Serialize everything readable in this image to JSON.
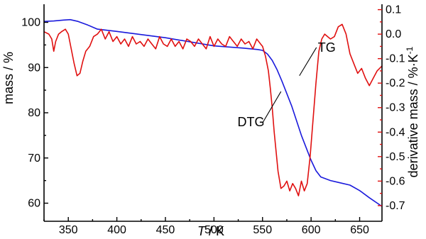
{
  "chart_data": {
    "type": "line",
    "xlabel": {
      "italic": "T",
      "rest": " / K"
    },
    "ylabel_left": "mass / %",
    "ylabel_right": {
      "base": "derivative mass / %·K",
      "sup": "-1"
    },
    "xlim": [
      325,
      673
    ],
    "ylim_left": [
      56,
      104
    ],
    "ylim_right": [
      -0.764,
      0.122
    ],
    "x_ticks": [
      350,
      400,
      450,
      500,
      550,
      600,
      650
    ],
    "y_left_ticks": [
      60,
      70,
      80,
      90,
      100
    ],
    "y_right_ticks": [
      0.1,
      0.0,
      -0.1,
      -0.2,
      -0.3,
      -0.4,
      -0.5,
      -0.6,
      -0.7
    ],
    "y_right_tick_labels": [
      "0.1",
      "0.0",
      "-0.1",
      "-0.2",
      "-0.3",
      "-0.4",
      "-0.5",
      "-0.6",
      "-0.7"
    ],
    "grid": false,
    "colors": {
      "tg": "#1a1adc",
      "dtg": "#e01010",
      "axis_right": "#e01010",
      "axis_left": "#000000"
    },
    "series": [
      {
        "name": "TG",
        "axis": "left",
        "x": [
          325,
          335,
          345,
          352,
          360,
          370,
          380,
          400,
          450,
          500,
          530,
          545,
          550,
          555,
          560,
          565,
          570,
          580,
          590,
          600,
          605,
          610,
          620,
          630,
          640,
          650,
          660,
          673
        ],
        "y": [
          100.2,
          100.3,
          100.5,
          100.6,
          100.2,
          99.4,
          98.5,
          98.0,
          96.6,
          94.8,
          94.3,
          94.0,
          93.8,
          93.0,
          91.6,
          89.5,
          87.0,
          81.5,
          75.0,
          69.5,
          67.2,
          65.8,
          65.0,
          64.5,
          64.0,
          62.8,
          61.2,
          59.3
        ]
      },
      {
        "name": "DTG",
        "axis": "right",
        "x": [
          325,
          330,
          333,
          335,
          337,
          340,
          343,
          347,
          350,
          353,
          356,
          359,
          362,
          365,
          368,
          372,
          376,
          380,
          384,
          388,
          392,
          396,
          400,
          404,
          408,
          412,
          416,
          420,
          424,
          428,
          432,
          436,
          440,
          444,
          448,
          452,
          456,
          460,
          464,
          468,
          472,
          476,
          480,
          484,
          488,
          492,
          496,
          500,
          504,
          508,
          512,
          516,
          520,
          524,
          528,
          532,
          536,
          540,
          544,
          548,
          550,
          553,
          556,
          558,
          560,
          562,
          564,
          566,
          569,
          572,
          575,
          578,
          581,
          584,
          587,
          590,
          593,
          596,
          599,
          602,
          605,
          608,
          611,
          614,
          617,
          620,
          624,
          628,
          632,
          636,
          640,
          644,
          648,
          652,
          656,
          660,
          664,
          668,
          673
        ],
        "y": [
          0.01,
          0.0,
          -0.02,
          -0.07,
          -0.03,
          0.0,
          0.01,
          0.02,
          0.0,
          -0.06,
          -0.12,
          -0.17,
          -0.16,
          -0.11,
          -0.07,
          -0.05,
          -0.01,
          0.0,
          0.02,
          -0.02,
          0.01,
          -0.03,
          -0.01,
          -0.04,
          -0.02,
          -0.05,
          -0.01,
          -0.04,
          -0.03,
          -0.05,
          -0.02,
          -0.04,
          -0.06,
          -0.01,
          -0.04,
          -0.05,
          -0.02,
          -0.05,
          -0.03,
          -0.06,
          -0.02,
          -0.03,
          -0.05,
          -0.02,
          -0.04,
          -0.06,
          -0.01,
          -0.05,
          -0.02,
          -0.04,
          -0.05,
          -0.01,
          -0.03,
          -0.05,
          -0.02,
          -0.04,
          -0.03,
          -0.06,
          -0.02,
          -0.04,
          -0.05,
          -0.09,
          -0.15,
          -0.22,
          -0.3,
          -0.4,
          -0.48,
          -0.56,
          -0.63,
          -0.62,
          -0.6,
          -0.64,
          -0.61,
          -0.63,
          -0.66,
          -0.6,
          -0.64,
          -0.61,
          -0.5,
          -0.35,
          -0.2,
          -0.07,
          -0.02,
          0.0,
          -0.01,
          -0.02,
          -0.01,
          0.03,
          0.04,
          0.0,
          -0.08,
          -0.12,
          -0.16,
          -0.14,
          -0.18,
          -0.21,
          -0.18,
          -0.15,
          -0.13
        ]
      }
    ],
    "annotations": [
      {
        "text": "TG",
        "x": 607,
        "y": 93.5,
        "axis": "left",
        "line_to": [
          588,
          88.2
        ]
      },
      {
        "text": "DTG",
        "x": 552,
        "y": 77.0,
        "axis": "left",
        "line_to": [
          569,
          84.7
        ]
      }
    ]
  }
}
